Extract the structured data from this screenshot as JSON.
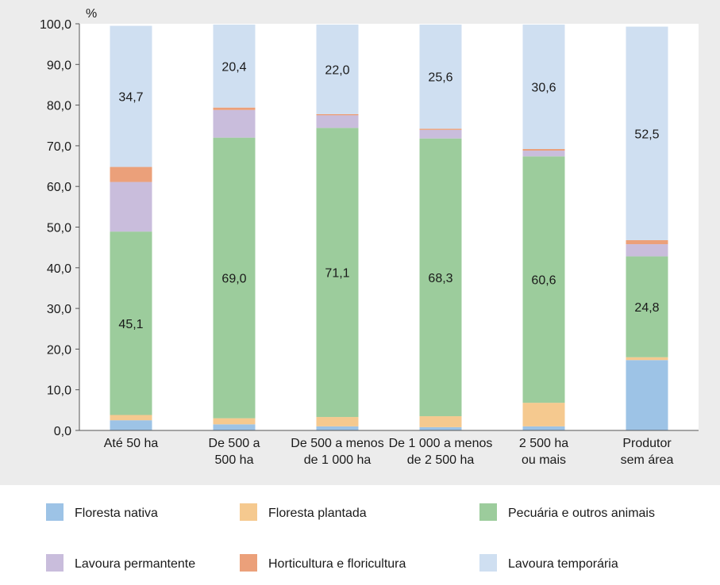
{
  "chart_data": {
    "type": "bar",
    "stacked": true,
    "ylabel": "%",
    "ylim": [
      0,
      100
    ],
    "yticks": [
      "0,0",
      "10,0",
      "20,0",
      "30,0",
      "40,0",
      "50,0",
      "60,0",
      "70,0",
      "80,0",
      "90,0",
      "100,0"
    ],
    "grid": false,
    "legend_position": "bottom",
    "categories": [
      [
        "Até 50 ha"
      ],
      [
        "De 500 a",
        "500 ha"
      ],
      [
        "De 500 a menos",
        "de 1 000 ha"
      ],
      [
        "De 1 000 a menos",
        "de 2 500 ha"
      ],
      [
        "2 500 ha",
        "ou mais"
      ],
      [
        "Produtor",
        "sem área"
      ]
    ],
    "series": [
      {
        "name": "Floresta nativa",
        "color": "#9dc3e6",
        "values": [
          2.5,
          1.5,
          1.0,
          0.8,
          1.0,
          17.3
        ]
      },
      {
        "name": "Floresta plantada",
        "color": "#f5c98f",
        "values": [
          1.3,
          1.5,
          2.3,
          2.7,
          5.8,
          0.7
        ]
      },
      {
        "name": "Pecuária e outros animais",
        "color": "#9ccc9c",
        "values": [
          45.1,
          69.0,
          71.1,
          68.3,
          60.6,
          24.8
        ]
      },
      {
        "name": "Lavoura permantente",
        "color": "#c9bddc",
        "values": [
          12.2,
          6.8,
          3.1,
          2.1,
          1.4,
          3.0
        ]
      },
      {
        "name": "Horticultura e floricultura",
        "color": "#eba07a",
        "values": [
          3.7,
          0.6,
          0.3,
          0.3,
          0.4,
          1.0
        ]
      },
      {
        "name": "Lavoura temporária",
        "color": "#cfdff1",
        "values": [
          34.7,
          20.4,
          22.0,
          25.6,
          30.6,
          52.5
        ]
      }
    ],
    "data_labels": [
      {
        "series": 2,
        "labels": [
          "45,1",
          "69,0",
          "71,1",
          "68,3",
          "60,6",
          "24,8"
        ]
      },
      {
        "series": 5,
        "labels": [
          "34,7",
          "20,4",
          "22,0",
          "25,6",
          "30,6",
          "52,5"
        ]
      }
    ]
  }
}
